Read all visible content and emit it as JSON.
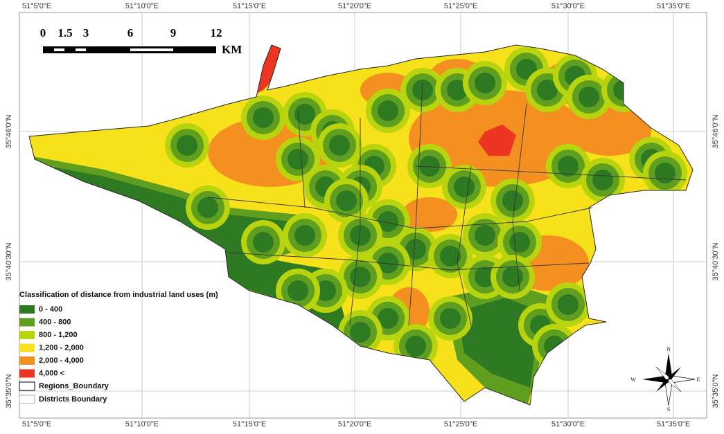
{
  "lon_labels_top": [
    "51°5'0\"E",
    "51°10'0\"E",
    "51°15'0\"E",
    "51°20'0\"E",
    "51°25'0\"E",
    "51°30'0\"E",
    "51°35'0\"E"
  ],
  "lon_labels_bottom": [
    "51°5'0\"E",
    "51°10'0\"E",
    "51°15'0\"E",
    "51°20'0\"E",
    "51°25'0\"E",
    "51°30'0\"E",
    "51°35'0\"E"
  ],
  "lat_labels_left": [
    "35°46'0\"N",
    "35°40'30\"N",
    "35°35'0\"N"
  ],
  "lat_labels_right": [
    "35°46'0\"N",
    "35°40'30\"N",
    "35°35'0\"N"
  ],
  "scale_bar": {
    "ticks": [
      "0",
      "1.5",
      "3",
      "6",
      "9",
      "12"
    ],
    "unit": "KM"
  },
  "legend": {
    "title": "Classification of distance from industrial land uses (m)",
    "classes": [
      {
        "label": "0 - 400",
        "color": "#2e7a22"
      },
      {
        "label": "400 - 800",
        "color": "#5f9e1e"
      },
      {
        "label": "800 - 1,200",
        "color": "#b8d40f"
      },
      {
        "label": "1,200 - 2,000",
        "color": "#f6e11b"
      },
      {
        "label": "2,000 - 4,000",
        "color": "#f39020"
      },
      {
        "label": "4,000 <",
        "color": "#ec3623"
      }
    ],
    "boundaries": [
      "Regions_Boundary",
      "Districts Boundary"
    ]
  },
  "compass": {
    "north": "N",
    "south": "S",
    "east": "E",
    "west": "W"
  }
}
